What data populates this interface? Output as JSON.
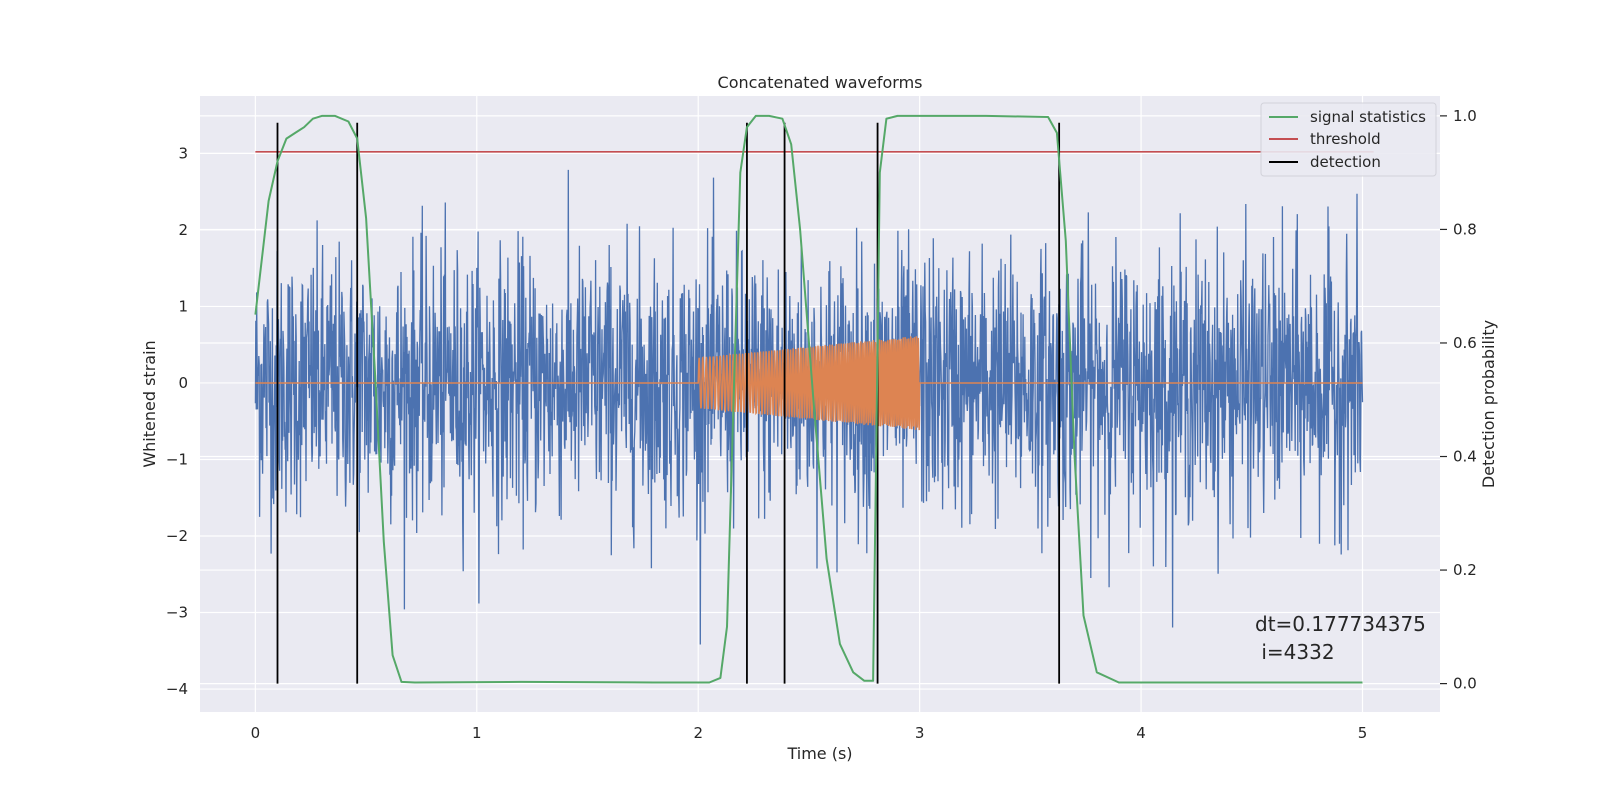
{
  "chart_data": {
    "type": "line",
    "title": "Concatenated waveforms",
    "xlabel": "Time (s)",
    "ylabel": "Whitened strain",
    "y2label": "Detection probability",
    "xlim": [
      -0.25,
      5.35
    ],
    "ylim": [
      -4.3,
      3.75
    ],
    "y2lim": [
      -0.05,
      1.035
    ],
    "x_ticks": [
      0,
      1,
      2,
      3,
      4,
      5
    ],
    "y_ticks": [
      -4,
      -3,
      -2,
      -1,
      0,
      1,
      2,
      3
    ],
    "y2_ticks": [
      0.0,
      0.2,
      0.4,
      0.6,
      0.8,
      1.0
    ],
    "y2_tick_labels": [
      "0.0",
      "0.2",
      "0.4",
      "0.6",
      "0.8",
      "1.0"
    ],
    "grid": true,
    "legend_position": "top-right",
    "colors": {
      "strain": "#4c72b0",
      "template": "#dd8452",
      "signal_statistics": "#55a868",
      "threshold": "#c44e52",
      "detection": "#000000",
      "background": "#eaeaf2",
      "grid": "#ffffff"
    },
    "legend": [
      {
        "label": "signal statistics",
        "color": "#55a868"
      },
      {
        "label": "threshold",
        "color": "#c44e52"
      },
      {
        "label": "detection",
        "color": "#000000"
      }
    ],
    "strain": {
      "x_range": [
        0,
        5
      ],
      "band_approx": [
        -1.5,
        1.8
      ],
      "peak_max": 3.35,
      "peak_min": -3.9
    },
    "template": {
      "x_range": [
        2.0,
        3.0
      ],
      "amplitude_start": 0.33,
      "amplitude_end": 0.62
    },
    "threshold": {
      "x": [
        0,
        5.05
      ],
      "y": 3.02
    },
    "detections_x": [
      0.1,
      0.46,
      2.22,
      2.39,
      2.81,
      3.63
    ],
    "detection_y_range": [
      -3.93,
      3.4
    ],
    "signal_statistics": {
      "x": [
        0.0,
        0.03,
        0.06,
        0.1,
        0.14,
        0.18,
        0.22,
        0.26,
        0.3,
        0.36,
        0.42,
        0.46,
        0.5,
        0.54,
        0.58,
        0.62,
        0.66,
        0.72,
        1.2,
        1.8,
        2.05,
        2.1,
        2.13,
        2.16,
        2.19,
        2.22,
        2.26,
        2.32,
        2.38,
        2.42,
        2.46,
        2.52,
        2.58,
        2.64,
        2.7,
        2.75,
        2.79,
        2.8,
        2.82,
        2.85,
        2.9,
        3.0,
        3.3,
        3.58,
        3.62,
        3.66,
        3.7,
        3.74,
        3.8,
        3.9,
        4.2,
        4.6,
        5.0
      ],
      "y": [
        0.65,
        0.75,
        0.85,
        0.92,
        0.96,
        0.97,
        0.98,
        0.995,
        1.0,
        1.0,
        0.99,
        0.96,
        0.82,
        0.55,
        0.25,
        0.05,
        0.003,
        0.002,
        0.003,
        0.002,
        0.002,
        0.01,
        0.1,
        0.5,
        0.9,
        0.98,
        1.0,
        1.0,
        0.995,
        0.95,
        0.8,
        0.5,
        0.22,
        0.07,
        0.02,
        0.005,
        0.005,
        0.3,
        0.9,
        0.995,
        1.0,
        1.0,
        1.0,
        0.998,
        0.97,
        0.78,
        0.4,
        0.12,
        0.02,
        0.002,
        0.002,
        0.002,
        0.002
      ]
    },
    "annotation": {
      "line1": "dt=0.177734375",
      "line2": " i=4332"
    }
  }
}
